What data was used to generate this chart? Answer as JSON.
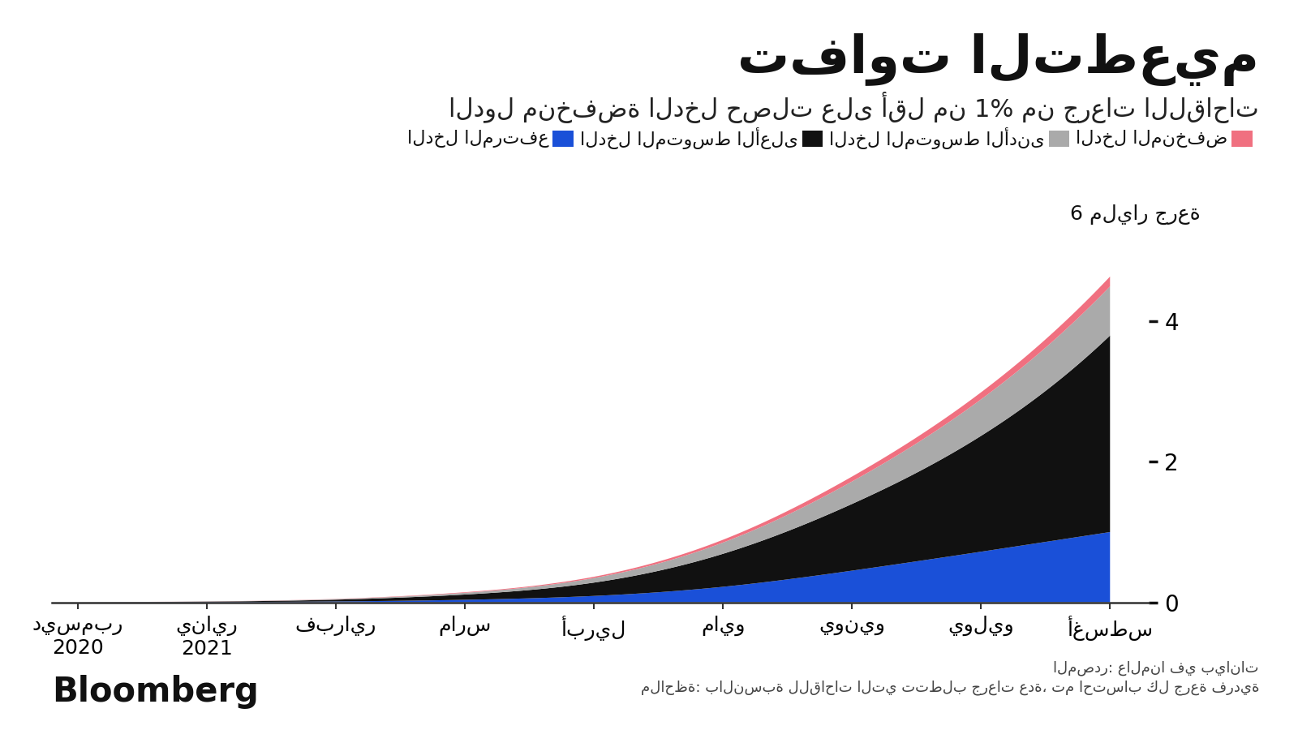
{
  "title": "تفاوت التطعيم",
  "subtitle": "الدول منخفضة الدخل حصلت على أقل من 1% من جرعات اللقاحات",
  "ylabel_number": "6",
  "ylabel_text": " مليار جرعة",
  "source_text": "المصدر: عالمنا في بيانات",
  "note_text": "ملاحظة: بالنسبة للقاحات التي تتطلب جرعات عدة، تم احتساب كل جرعة فردية",
  "bloomberg_text": "Bloomberg",
  "x_labels": [
    "ديسمبر\n2020",
    "يناير\n2021",
    "فبراير",
    "مارس",
    "أبريل",
    "مايو",
    "يونيو",
    "يوليو",
    "أغسطس"
  ],
  "legend_high": "الدخل المرتفع",
  "legend_upper_mid": "الدخل المتوسط الأعلى",
  "legend_lower_mid": "الدخل المتوسط الأدنى",
  "legend_low": "الدخل المنخفض",
  "x_fine": [
    0.0,
    0.125,
    0.25,
    0.375,
    0.5,
    0.625,
    0.75,
    0.875,
    1.0,
    1.125,
    1.25,
    1.375,
    1.5,
    1.625,
    1.75,
    1.875,
    2.0,
    2.125,
    2.25,
    2.375,
    2.5,
    2.625,
    2.75,
    2.875,
    3.0,
    3.125,
    3.25,
    3.375,
    3.5,
    3.625,
    3.75,
    3.875,
    4.0,
    4.125,
    4.25,
    4.375,
    4.5,
    4.625,
    4.75,
    4.875,
    5.0,
    5.125,
    5.25,
    5.375,
    5.5,
    5.625,
    5.75,
    5.875,
    6.0,
    6.125,
    6.25,
    6.375,
    6.5,
    6.625,
    6.75,
    6.875,
    7.0,
    7.125,
    7.25,
    7.375,
    7.5,
    7.625,
    7.75,
    7.875,
    8.0
  ],
  "high_income_color": "#111111",
  "upper_mid_income_color": "#1a50d8",
  "lower_mid_income_color": "#aaaaaa",
  "low_income_color": "#f07080",
  "bg_color": "#ffffff",
  "yticks": [
    0,
    2,
    4
  ],
  "ylim": [
    0,
    5.2
  ],
  "xlim": [
    -0.2,
    8.3
  ]
}
